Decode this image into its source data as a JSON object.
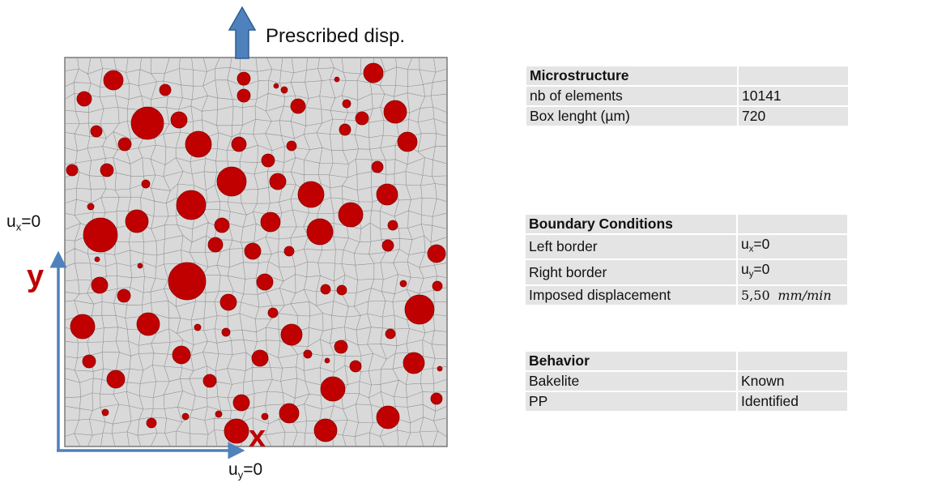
{
  "diagram": {
    "top_arrow_label": "Prescribed disp.",
    "ux_label": {
      "base": "u",
      "sub": "x",
      "rest": "=0"
    },
    "uy_label": {
      "base": "u",
      "sub": "y",
      "rest": "=0"
    },
    "y_axis_label": "y",
    "x_axis_label": "x",
    "colors": {
      "inclusion": "#c00000",
      "inclusion_outline": "#8a0000",
      "matrix": "#d9d9d9",
      "mesh_line": "#8c8c8c",
      "axis_arrow": "#4f81bd",
      "axis_label": "#c00000"
    }
  },
  "tables": {
    "microstructure": {
      "header": "Microstructure",
      "rows": [
        {
          "label": "nb of elements",
          "value": "10141"
        },
        {
          "label": "Box lenght (µm)",
          "value": "720"
        }
      ]
    },
    "boundary": {
      "header": "Boundary Conditions",
      "left_border": {
        "label": "Left border",
        "value_base": "u",
        "value_sub": "x",
        "value_rest": "=0"
      },
      "right_border": {
        "label": "Right border",
        "value_base": "u",
        "value_sub": "y",
        "value_rest": "=0"
      },
      "imposed": {
        "label": "Imposed displacement",
        "value_num": "5,50",
        "value_unit": "mm/min"
      }
    },
    "behavior": {
      "header": "Behavior",
      "rows": [
        {
          "label": "Bakelite",
          "value": "Known"
        },
        {
          "label": "PP",
          "value": "Identified"
        }
      ]
    }
  }
}
